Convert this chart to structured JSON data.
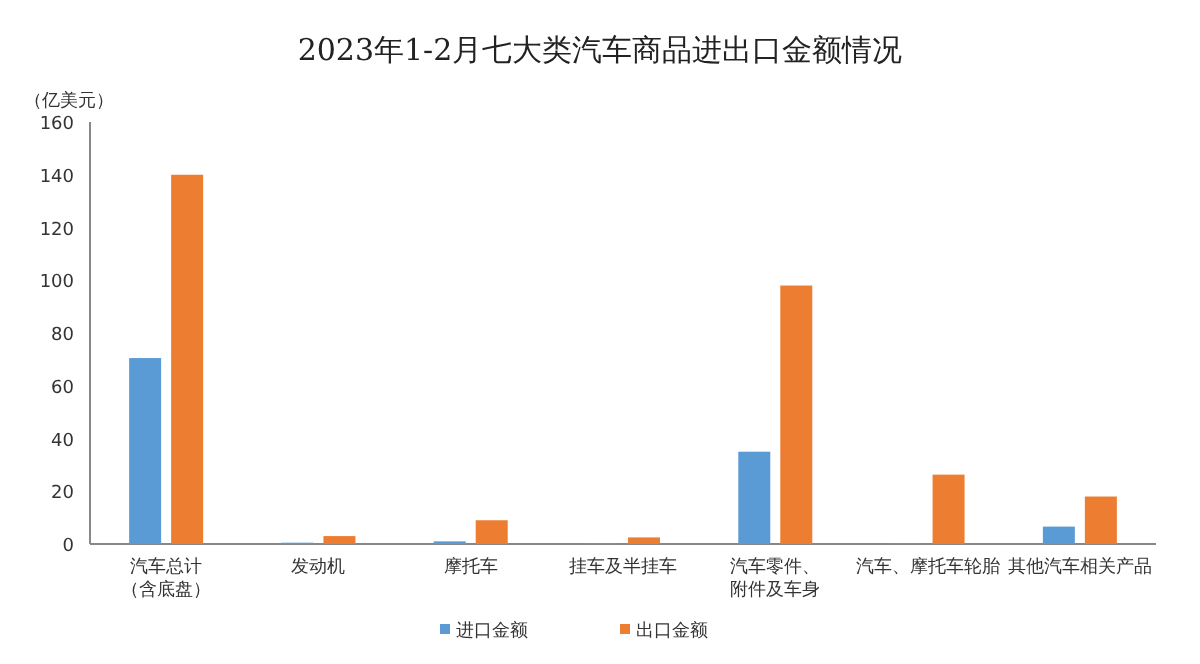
{
  "chart_data": {
    "type": "bar",
    "title": "2023年1-2月七大类汽车商品进出口金额情况",
    "ylabel": "（亿美元）",
    "categories": [
      "汽车总计（含底盘）",
      "发动机",
      "摩托车",
      "挂车及半挂车",
      "汽车零件、附件及车身",
      "汽车、摩托车轮胎",
      "其他汽车相关产品"
    ],
    "series": [
      {
        "name": "进口金额",
        "color": "#5b9bd5",
        "values": [
          70.5,
          0.5,
          1,
          0.3,
          35,
          0.3,
          6.6
        ]
      },
      {
        "name": "出口金额",
        "color": "#ed7d31",
        "values": [
          140,
          3,
          9,
          2.5,
          98,
          26.3,
          18
        ]
      }
    ],
    "ylim": [
      0,
      160
    ],
    "yticks": [
      0,
      20,
      40,
      60,
      80,
      100,
      120,
      140,
      160
    ],
    "grid": false,
    "legend": "bottom"
  }
}
